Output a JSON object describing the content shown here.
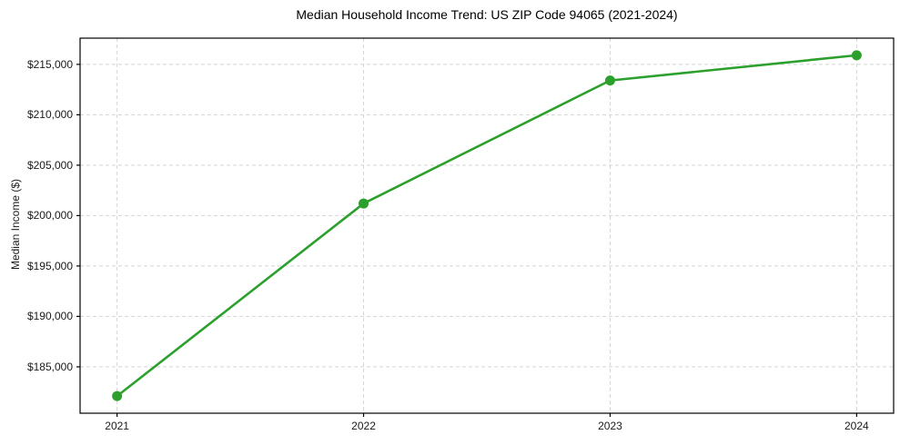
{
  "figure": {
    "title": "Median Household Income Trend: US ZIP Code 94065 (2021-2024)"
  },
  "chart_data": {
    "type": "line",
    "title": "Median Household Income Trend: US ZIP Code 94065 (2021-2024)",
    "xlabel": "",
    "ylabel": "Median Income ($)",
    "x": [
      2021,
      2022,
      2023,
      2024
    ],
    "x_tick_labels": [
      "2021",
      "2022",
      "2023",
      "2024"
    ],
    "series": [
      {
        "name": "Median household income",
        "values": [
          182100,
          201200,
          213400,
          215900
        ]
      }
    ],
    "y_ticks": [
      185000,
      190000,
      195000,
      200000,
      205000,
      210000,
      215000
    ],
    "y_tick_labels": [
      "$185,000",
      "$190,000",
      "$195,000",
      "$200,000",
      "$205,000",
      "$210,000",
      "$215,000"
    ],
    "xlim": [
      2020.85,
      2024.15
    ],
    "ylim": [
      180400,
      217600
    ],
    "grid": true,
    "grid_line_style": "dashed",
    "legend": "none",
    "marker": "circle",
    "colors": {
      "line": "#2ca02c",
      "marker": "#2ca02c",
      "grid": "#d4d4d4",
      "spine": "#000000",
      "text": "#1a1a1a",
      "background": "#ffffff"
    }
  }
}
